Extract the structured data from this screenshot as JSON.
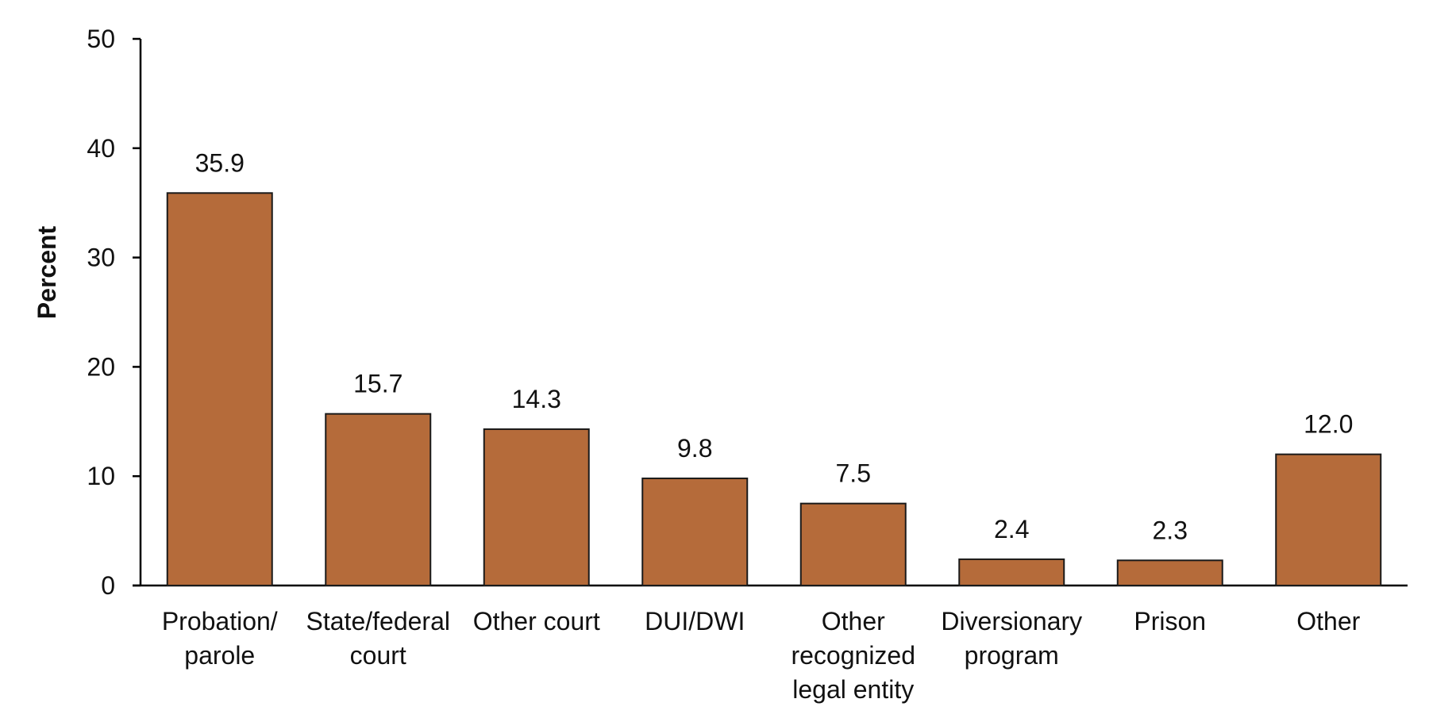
{
  "chart_data": {
    "type": "bar",
    "title": "",
    "xlabel": "",
    "ylabel": "Percent",
    "ylim": [
      0,
      50
    ],
    "yticks": [
      0,
      10,
      20,
      30,
      40,
      50
    ],
    "grid": false,
    "legend": "none",
    "categories": [
      [
        "Probation/",
        "parole"
      ],
      [
        "State/federal",
        "court"
      ],
      [
        "Other court"
      ],
      [
        "DUI/DWI"
      ],
      [
        "Other",
        "recognized",
        "legal entity"
      ],
      [
        "Diversionary",
        "program"
      ],
      [
        "Prison"
      ],
      [
        "Other"
      ]
    ],
    "values": [
      35.9,
      15.7,
      14.3,
      9.8,
      7.5,
      2.4,
      2.3,
      12.0
    ],
    "value_labels": [
      "35.9",
      "15.7",
      "14.3",
      "9.8",
      "7.5",
      "2.4",
      "2.3",
      "12.0"
    ],
    "colors": {
      "bar_fill": "#b56b3a",
      "bar_stroke": "#1a1a1a",
      "axis": "#000000"
    }
  }
}
